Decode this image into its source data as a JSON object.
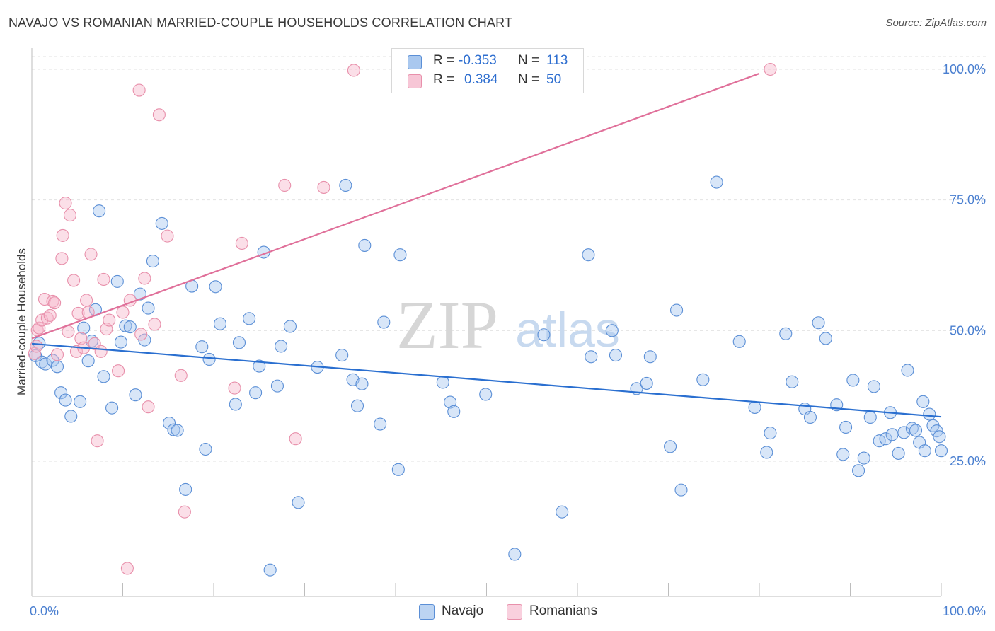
{
  "header": {
    "title": "NAVAJO VS ROMANIAN MARRIED-COUPLE HOUSEHOLDS CORRELATION CHART",
    "source": "Source: ZipAtlas.com"
  },
  "watermark": {
    "zip": "ZIP",
    "atlas": "atlas"
  },
  "colors": {
    "navajo_fill": "#a9c8ef",
    "navajo_stroke": "#5b8fd6",
    "navajo_line": "#2a6fd0",
    "romanian_fill": "#f7b7cb",
    "romanian_stroke": "#e890ab",
    "romanian_line": "#e0709a",
    "tick_text": "#4a7fd0",
    "grid": "#e2e2e2"
  },
  "legend": {
    "rows": [
      {
        "r_label": "R =",
        "r_value": "-0.353",
        "n_label": "N =",
        "n_value": "113"
      },
      {
        "r_label": "R =",
        "r_value": "0.384",
        "n_label": "N =",
        "n_value": "50"
      }
    ]
  },
  "bottom_legend": {
    "navajo": "Navajo",
    "romanians": "Romanians"
  },
  "chart_data": {
    "type": "scatter",
    "title": "NAVAJO VS ROMANIAN MARRIED-COUPLE HOUSEHOLDS CORRELATION CHART",
    "xlabel": "",
    "ylabel": "Married-couple Households",
    "xlim": [
      0,
      100
    ],
    "ylim": [
      0,
      103
    ],
    "x_tick_labels": [
      "0.0%",
      "100.0%"
    ],
    "y_tick_labels": [
      "100.0%",
      "75.0%",
      "50.0%",
      "25.0%"
    ],
    "y_ticks": [
      100,
      75,
      50,
      25
    ],
    "series": [
      {
        "name": "Navajo",
        "r": -0.353,
        "n": 113,
        "trend": {
          "x": [
            0,
            100
          ],
          "y": [
            47.5,
            33.5
          ]
        },
        "points": [
          [
            0.4,
            45.2
          ],
          [
            0.8,
            47.6
          ],
          [
            1.1,
            44.0
          ],
          [
            1.5,
            43.6
          ],
          [
            2.3,
            44.3
          ],
          [
            2.8,
            43.1
          ],
          [
            3.2,
            38.1
          ],
          [
            3.7,
            36.7
          ],
          [
            4.3,
            33.6
          ],
          [
            5.3,
            36.4
          ],
          [
            5.7,
            50.5
          ],
          [
            6.2,
            44.2
          ],
          [
            6.6,
            48.0
          ],
          [
            7.0,
            54.0
          ],
          [
            7.4,
            72.9
          ],
          [
            7.9,
            41.2
          ],
          [
            8.8,
            35.2
          ],
          [
            9.4,
            59.4
          ],
          [
            9.8,
            47.8
          ],
          [
            10.3,
            50.9
          ],
          [
            10.8,
            50.7
          ],
          [
            11.4,
            37.7
          ],
          [
            11.9,
            57.0
          ],
          [
            12.4,
            48.2
          ],
          [
            12.8,
            54.3
          ],
          [
            13.3,
            63.3
          ],
          [
            14.3,
            70.5
          ],
          [
            15.1,
            32.3
          ],
          [
            15.6,
            31.0
          ],
          [
            16.0,
            30.9
          ],
          [
            16.9,
            19.6
          ],
          [
            17.6,
            58.5
          ],
          [
            18.7,
            46.9
          ],
          [
            19.1,
            27.3
          ],
          [
            19.5,
            44.5
          ],
          [
            20.2,
            58.4
          ],
          [
            20.7,
            51.3
          ],
          [
            22.4,
            35.9
          ],
          [
            22.8,
            47.7
          ],
          [
            23.9,
            52.3
          ],
          [
            24.6,
            38.1
          ],
          [
            25.0,
            43.2
          ],
          [
            25.5,
            65.0
          ],
          [
            26.2,
            4.2
          ],
          [
            27.0,
            39.4
          ],
          [
            27.4,
            47.0
          ],
          [
            28.4,
            50.8
          ],
          [
            29.3,
            17.1
          ],
          [
            31.4,
            43.0
          ],
          [
            34.1,
            45.3
          ],
          [
            34.5,
            77.8
          ],
          [
            35.3,
            40.6
          ],
          [
            35.8,
            35.6
          ],
          [
            36.3,
            39.8
          ],
          [
            36.6,
            66.3
          ],
          [
            38.3,
            32.1
          ],
          [
            38.7,
            51.6
          ],
          [
            40.3,
            23.4
          ],
          [
            40.5,
            64.5
          ],
          [
            45.2,
            40.1
          ],
          [
            46.0,
            36.3
          ],
          [
            46.4,
            34.5
          ],
          [
            49.9,
            37.8
          ],
          [
            53.1,
            7.2
          ],
          [
            56.3,
            49.2
          ],
          [
            58.3,
            15.3
          ],
          [
            61.2,
            64.5
          ],
          [
            61.5,
            45.0
          ],
          [
            63.8,
            50.0
          ],
          [
            64.2,
            45.3
          ],
          [
            66.5,
            38.9
          ],
          [
            67.6,
            39.9
          ],
          [
            68.0,
            45.0
          ],
          [
            70.2,
            27.8
          ],
          [
            70.9,
            53.9
          ],
          [
            71.4,
            19.5
          ],
          [
            73.8,
            40.6
          ],
          [
            75.3,
            78.4
          ],
          [
            77.8,
            47.9
          ],
          [
            79.5,
            35.3
          ],
          [
            80.8,
            26.7
          ],
          [
            81.2,
            30.4
          ],
          [
            82.9,
            49.4
          ],
          [
            83.6,
            40.2
          ],
          [
            85.0,
            35.0
          ],
          [
            85.6,
            33.4
          ],
          [
            86.5,
            51.5
          ],
          [
            87.3,
            48.5
          ],
          [
            88.5,
            35.8
          ],
          [
            89.2,
            26.3
          ],
          [
            89.5,
            31.5
          ],
          [
            90.3,
            40.5
          ],
          [
            90.9,
            23.2
          ],
          [
            91.5,
            25.6
          ],
          [
            92.2,
            33.4
          ],
          [
            92.6,
            39.3
          ],
          [
            93.2,
            28.9
          ],
          [
            93.9,
            29.3
          ],
          [
            94.4,
            34.3
          ],
          [
            94.6,
            30.1
          ],
          [
            95.3,
            26.5
          ],
          [
            95.9,
            30.5
          ],
          [
            96.3,
            42.4
          ],
          [
            96.8,
            31.3
          ],
          [
            97.2,
            30.9
          ],
          [
            97.6,
            28.6
          ],
          [
            98.0,
            36.4
          ],
          [
            98.2,
            27.0
          ],
          [
            98.7,
            34.0
          ],
          [
            99.1,
            31.8
          ],
          [
            99.5,
            30.8
          ],
          [
            99.8,
            29.7
          ],
          [
            100.0,
            27.0
          ]
        ]
      },
      {
        "name": "Romanians",
        "r": 0.384,
        "n": 50,
        "trend": {
          "x": [
            0,
            80
          ],
          "y": [
            48.5,
            99.2
          ]
        },
        "points": [
          [
            0.3,
            45.6
          ],
          [
            0.5,
            47.0
          ],
          [
            0.6,
            50.1
          ],
          [
            0.8,
            50.5
          ],
          [
            1.1,
            52.0
          ],
          [
            1.4,
            56.0
          ],
          [
            1.7,
            52.4
          ],
          [
            2.0,
            52.9
          ],
          [
            2.3,
            55.6
          ],
          [
            2.5,
            55.3
          ],
          [
            2.8,
            45.4
          ],
          [
            3.3,
            63.8
          ],
          [
            3.4,
            68.2
          ],
          [
            3.7,
            74.4
          ],
          [
            4.0,
            49.8
          ],
          [
            4.2,
            72.1
          ],
          [
            4.6,
            59.6
          ],
          [
            4.9,
            46.0
          ],
          [
            5.1,
            53.3
          ],
          [
            5.4,
            48.5
          ],
          [
            5.7,
            46.7
          ],
          [
            6.0,
            55.8
          ],
          [
            6.2,
            53.5
          ],
          [
            6.5,
            64.6
          ],
          [
            6.9,
            47.5
          ],
          [
            7.2,
            28.9
          ],
          [
            7.6,
            46.0
          ],
          [
            7.9,
            59.8
          ],
          [
            8.2,
            50.3
          ],
          [
            8.5,
            52.0
          ],
          [
            9.5,
            42.3
          ],
          [
            10.0,
            53.5
          ],
          [
            10.5,
            4.5
          ],
          [
            10.8,
            55.8
          ],
          [
            11.8,
            96.0
          ],
          [
            12.0,
            49.3
          ],
          [
            12.4,
            60.0
          ],
          [
            12.8,
            35.4
          ],
          [
            13.5,
            51.2
          ],
          [
            14.0,
            91.3
          ],
          [
            14.9,
            68.1
          ],
          [
            16.4,
            41.4
          ],
          [
            16.8,
            15.3
          ],
          [
            22.3,
            39.0
          ],
          [
            23.1,
            66.7
          ],
          [
            27.8,
            77.8
          ],
          [
            29.0,
            29.3
          ],
          [
            32.1,
            77.4
          ],
          [
            35.4,
            99.8
          ],
          [
            81.2,
            100.0
          ]
        ]
      }
    ]
  }
}
